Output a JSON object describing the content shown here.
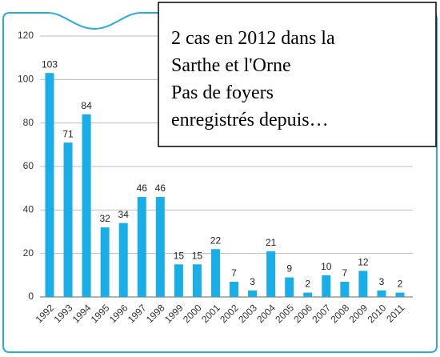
{
  "chart_data": {
    "type": "bar",
    "categories": [
      "1992",
      "1993",
      "1994",
      "1995",
      "1996",
      "1997",
      "1998",
      "1999",
      "2000",
      "2001",
      "2002",
      "2003",
      "2004",
      "2005",
      "2006",
      "2007",
      "2008",
      "2009",
      "2010",
      "2011"
    ],
    "values": [
      103,
      71,
      84,
      32,
      34,
      46,
      46,
      15,
      15,
      22,
      7,
      3,
      21,
      9,
      2,
      10,
      7,
      12,
      3,
      2
    ],
    "color": "#19aee8",
    "ylim": [
      0,
      120
    ],
    "yticks": [
      0,
      20,
      40,
      60,
      80,
      100,
      120
    ],
    "grid": true,
    "annotation": [
      " 2 cas en 2012 dans la",
      "Sarthe et l'Orne",
      " Pas de foyers",
      " enregistrés depuis…"
    ]
  }
}
